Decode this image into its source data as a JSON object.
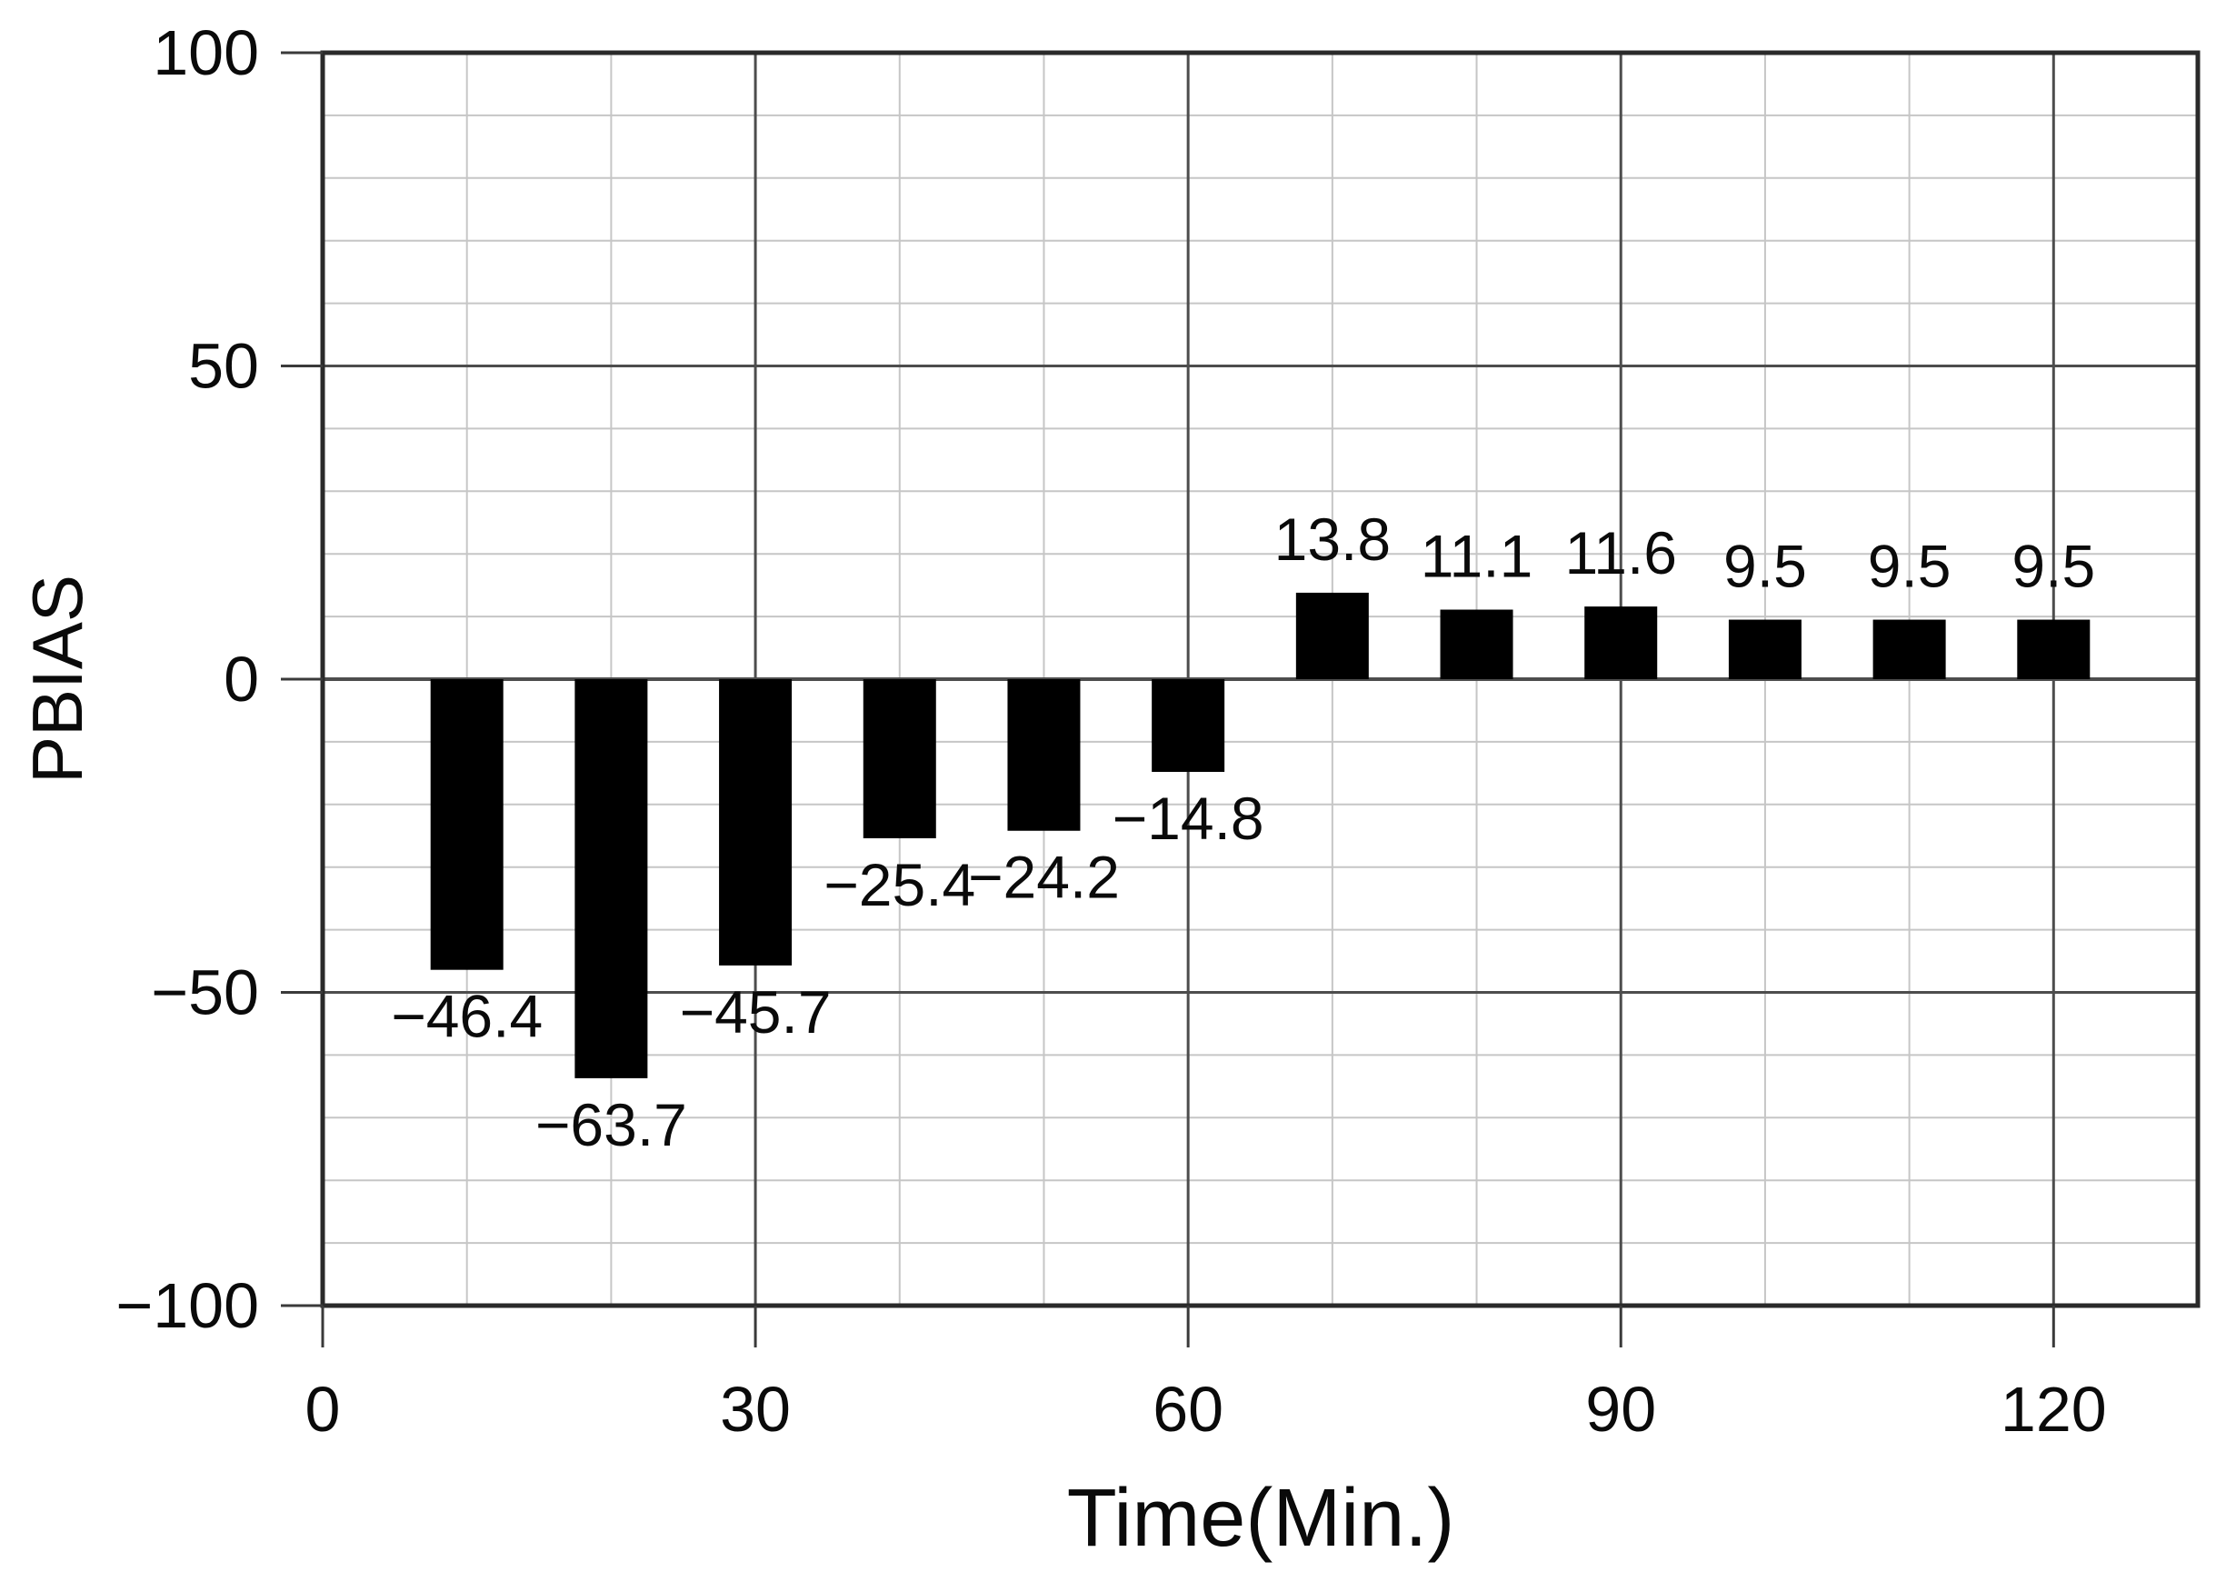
{
  "figure": {
    "background": "#ffffff"
  },
  "chart_data": {
    "type": "bar",
    "title": "",
    "xlabel": "Time(Min.)",
    "ylabel": "PBIAS",
    "x": [
      10,
      20,
      30,
      40,
      50,
      60,
      70,
      80,
      90,
      100,
      110,
      120
    ],
    "values": [
      -46.4,
      -63.7,
      -45.7,
      -25.4,
      -24.2,
      -14.8,
      13.8,
      11.1,
      11.6,
      9.5,
      9.5,
      9.5
    ],
    "point_labels": [
      "−46.4",
      "−63.7",
      "−45.7",
      "−25.4",
      "−24.2",
      "−14.8",
      "13.8",
      "11.1",
      "11.6",
      "9.5",
      "9.5",
      "9.5"
    ],
    "xlim": [
      0,
      130
    ],
    "ylim": [
      -100,
      100
    ],
    "x_ticks": [
      0,
      30,
      60,
      90,
      120
    ],
    "x_tick_labels": [
      "0",
      "30",
      "60",
      "90",
      "120"
    ],
    "y_ticks": [
      100,
      50,
      0,
      -50,
      -100
    ],
    "y_tick_labels": [
      "100",
      "50",
      "0",
      "−50",
      "−100"
    ],
    "x_minor_step": 10,
    "y_minor_step": 10,
    "x_major_step": 30,
    "y_major_step": 50,
    "grid": "on",
    "legend": "none",
    "style": {
      "bar_color": "#000000",
      "minor_grid_color": "#c6c6c6",
      "major_grid_color": "#4d4d4d",
      "zero_line_color": "#4d4d4d",
      "border_color": "#2a2a2a",
      "tick_color": "#3a3a3a",
      "text_color": "#0a0a0a",
      "background_color": "#ffffff"
    }
  }
}
